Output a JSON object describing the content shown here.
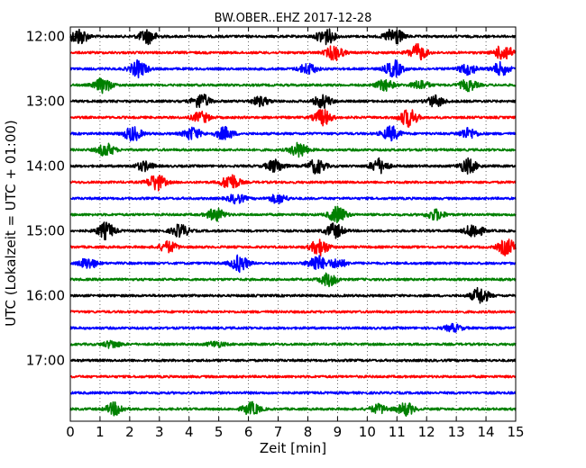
{
  "chart_data": {
    "type": "line",
    "title": "BW.OBER..EHZ 2017-12-28",
    "xlabel": "Zeit  [min]",
    "ylabel": "UTC (Lokalzeit = UTC + 01:00)",
    "xlim": [
      0,
      15
    ],
    "x_ticks": [
      "0",
      "1",
      "2",
      "3",
      "4",
      "5",
      "6",
      "7",
      "8",
      "9",
      "10",
      "11",
      "12",
      "13",
      "14",
      "15"
    ],
    "y_ticks": [
      "12:00",
      "13:00",
      "14:00",
      "15:00",
      "16:00",
      "17:00"
    ],
    "grid": true,
    "trace_colors": [
      "#000000",
      "#ff0000",
      "#0000ff",
      "#008000"
    ],
    "traces_start": "12:00",
    "trace_interval_min": 15,
    "trace_count": 24,
    "bursts": [
      [
        [
          0.3,
          0.9
        ],
        [
          2.6,
          0.8
        ],
        [
          8.6,
          0.9
        ],
        [
          10.9,
          1.0
        ]
      ],
      [
        [
          8.9,
          0.8
        ],
        [
          11.7,
          0.9
        ],
        [
          14.6,
          0.9
        ]
      ],
      [
        [
          2.3,
          0.9
        ],
        [
          8.0,
          0.6
        ],
        [
          10.9,
          0.9
        ],
        [
          13.4,
          0.6
        ],
        [
          14.5,
          0.7
        ]
      ],
      [
        [
          1.1,
          0.8
        ],
        [
          10.6,
          0.6
        ],
        [
          11.8,
          0.5
        ],
        [
          13.4,
          0.6
        ]
      ],
      [
        [
          4.4,
          0.8
        ],
        [
          6.4,
          0.5
        ],
        [
          8.5,
          0.7
        ],
        [
          12.3,
          0.6
        ]
      ],
      [
        [
          4.4,
          0.6
        ],
        [
          8.5,
          0.9
        ],
        [
          11.4,
          1.0
        ]
      ],
      [
        [
          2.1,
          0.8
        ],
        [
          4.1,
          0.7
        ],
        [
          5.2,
          0.7
        ],
        [
          10.8,
          0.8
        ],
        [
          13.4,
          0.6
        ]
      ],
      [
        [
          1.2,
          0.7
        ],
        [
          7.7,
          0.8
        ]
      ],
      [
        [
          2.5,
          0.5
        ],
        [
          6.9,
          0.7
        ],
        [
          8.3,
          0.8
        ],
        [
          10.4,
          0.8
        ],
        [
          13.4,
          0.8
        ]
      ],
      [
        [
          2.9,
          0.9
        ],
        [
          5.4,
          0.9
        ]
      ],
      [
        [
          5.6,
          0.5
        ],
        [
          7.0,
          0.5
        ]
      ],
      [
        [
          4.9,
          0.7
        ],
        [
          9.0,
          0.9
        ],
        [
          12.3,
          0.6
        ]
      ],
      [
        [
          1.2,
          0.9
        ],
        [
          3.7,
          0.7
        ],
        [
          8.9,
          0.8
        ],
        [
          13.6,
          0.8
        ]
      ],
      [
        [
          3.3,
          0.6
        ],
        [
          8.4,
          0.9
        ],
        [
          14.7,
          0.9
        ]
      ],
      [
        [
          0.6,
          0.6
        ],
        [
          5.7,
          0.9
        ],
        [
          8.3,
          0.9
        ],
        [
          9.0,
          0.5
        ]
      ],
      [
        [
          8.7,
          0.7
        ]
      ],
      [
        [
          13.8,
          0.9
        ]
      ],
      [],
      [
        [
          12.9,
          0.4
        ]
      ],
      [
        [
          1.4,
          0.4
        ],
        [
          4.9,
          0.3
        ]
      ],
      [],
      [],
      [],
      [
        [
          1.5,
          0.7
        ],
        [
          6.1,
          0.7
        ],
        [
          10.4,
          0.5
        ],
        [
          11.3,
          0.7
        ]
      ]
    ]
  }
}
